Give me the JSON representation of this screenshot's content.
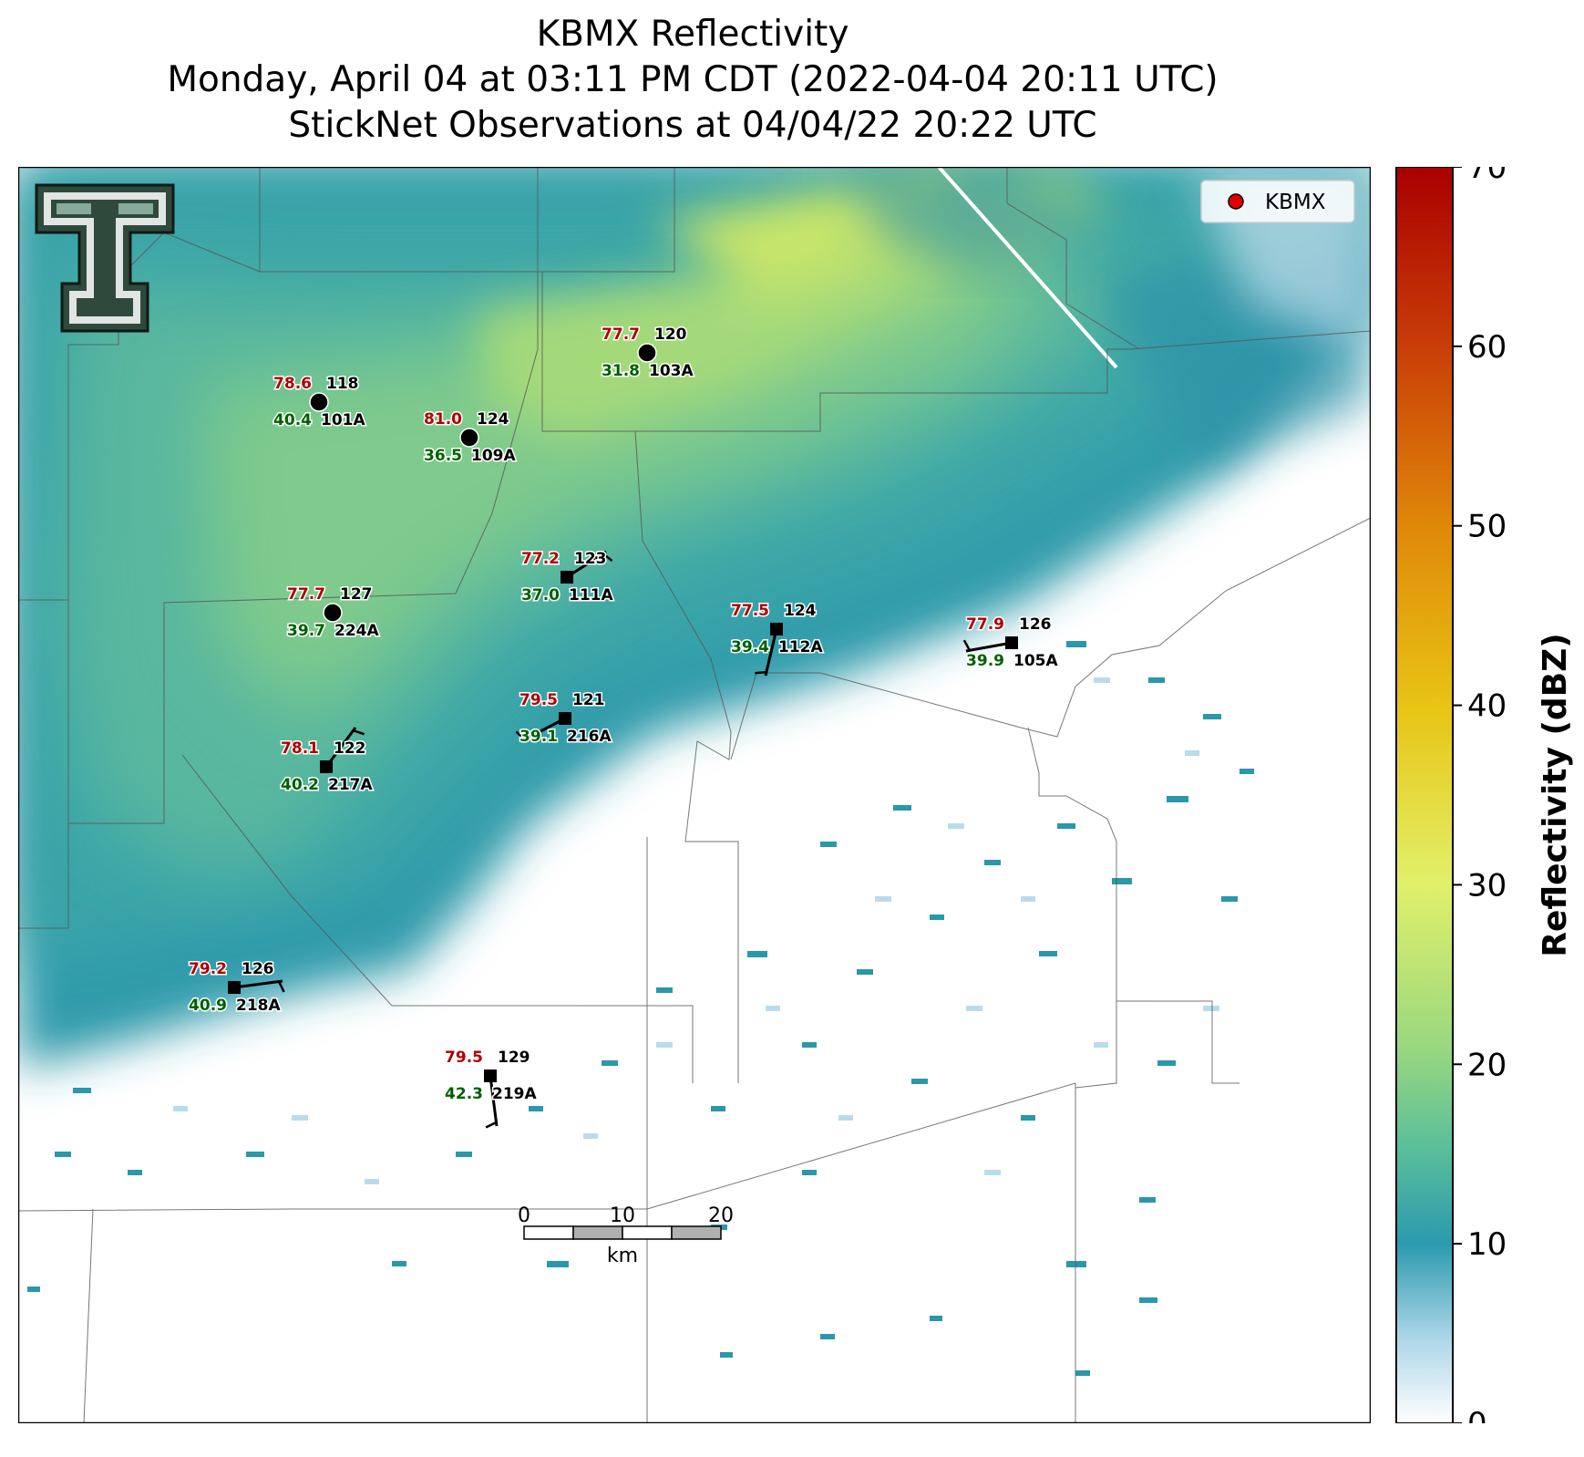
{
  "title": {
    "line1": "KBMX Reflectivity",
    "line2": "Monday, April 04 at 03:11 PM CDT (2022-04-04 20:11 UTC)",
    "line3": "StickNet Observations at 04/04/22 20:22 UTC"
  },
  "legend": {
    "label": "KBMX",
    "marker_color": "#e00000",
    "position": "upper-right"
  },
  "colorbar": {
    "label": "Reflectivity (dBZ)",
    "ticks": [
      "0",
      "10",
      "20",
      "30",
      "40",
      "50",
      "60",
      "70"
    ],
    "range": [
      0,
      70
    ],
    "colors": [
      "#ffffff",
      "#a9d4e8",
      "#2b9aad",
      "#5bbf9a",
      "#9ad87f",
      "#e2f06a",
      "#e8c414",
      "#e08a0a",
      "#c83c08",
      "#aa0000"
    ]
  },
  "scalebar": {
    "ticks": [
      "0",
      "10",
      "20"
    ],
    "unit": "km"
  },
  "logo": {
    "icon": "texas-tech-double-t-logo"
  },
  "stations": [
    {
      "id": "101A",
      "temp": "78.6",
      "dew": "40.4",
      "dir": "118",
      "marker": "circle"
    },
    {
      "id": "103A",
      "temp": "77.7",
      "dew": "31.8",
      "dir": "120",
      "marker": "circle"
    },
    {
      "id": "109A",
      "temp": "81.0",
      "dew": "36.5",
      "dir": "124",
      "marker": "circle"
    },
    {
      "id": "111A",
      "temp": "77.2",
      "dew": "37.0",
      "dir": "123",
      "marker": "square"
    },
    {
      "id": "224A",
      "temp": "77.7",
      "dew": "39.7",
      "dir": "127",
      "marker": "circle"
    },
    {
      "id": "112A",
      "temp": "77.5",
      "dew": "39.4",
      "dir": "124",
      "marker": "square"
    },
    {
      "id": "105A",
      "temp": "77.9",
      "dew": "39.9",
      "dir": "126",
      "marker": "square"
    },
    {
      "id": "216A",
      "temp": "79.5",
      "dew": "39.1",
      "dir": "121",
      "marker": "square"
    },
    {
      "id": "217A",
      "temp": "78.1",
      "dew": "40.2",
      "dir": "122",
      "marker": "square"
    },
    {
      "id": "218A",
      "temp": "79.2",
      "dew": "40.9",
      "dir": "126",
      "marker": "square"
    },
    {
      "id": "219A",
      "temp": "79.5",
      "dew": "42.3",
      "dir": "129",
      "marker": "square"
    }
  ]
}
